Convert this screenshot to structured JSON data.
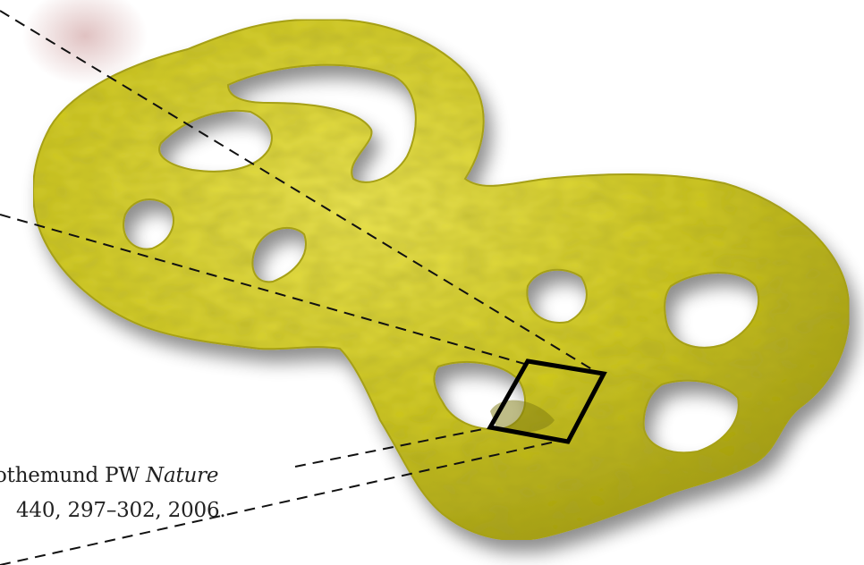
{
  "citation": {
    "line1_authors": "othemund PW",
    "line1_journal": "Nature",
    "line2": "440, 297–302, 2006."
  },
  "colors": {
    "origami_fill": "#c8c21e",
    "origami_highlight": "#e6e04a",
    "origami_shadow": "#8f8a12",
    "pink_smudge": "#d8b2b2",
    "dash_line": "#111111"
  }
}
